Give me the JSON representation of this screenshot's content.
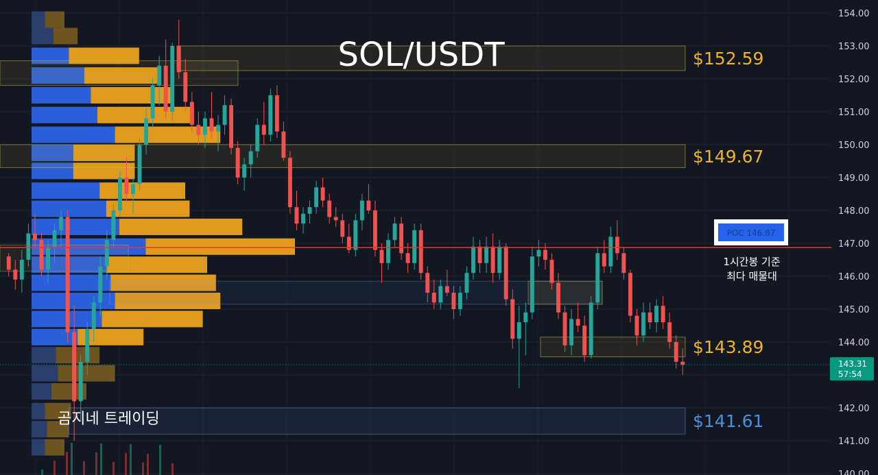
{
  "chart_data": {
    "type": "candlestick",
    "title": "SOL/USDT",
    "watermark": "곰지네 트레이딩",
    "y_ticks": [
      154.0,
      153.0,
      152.0,
      151.0,
      150.0,
      149.0,
      148.0,
      147.0,
      146.0,
      145.0,
      144.0,
      143.0,
      142.0,
      141.0,
      140.0
    ],
    "y_tick_labels": [
      "154.00",
      "153.00",
      "152.00",
      "151.00",
      "150.00",
      "149.00",
      "148.00",
      "147.00",
      "146.00",
      "145.00",
      "144.00",
      "143.00",
      "142.00",
      "141.00",
      "140.00"
    ],
    "ylim": [
      139.9,
      154.45
    ],
    "zones": [
      {
        "label": "$152.59",
        "top": 153.0,
        "bottom": 152.25,
        "color": "#f0b429"
      },
      {
        "label": "$149.67",
        "top": 150.0,
        "bottom": 149.3,
        "color": "#f0b429"
      },
      {
        "label": "$143.89",
        "top": 144.15,
        "bottom": 143.55,
        "color": "#f0b429"
      },
      {
        "label": "$141.61",
        "top": 142.0,
        "bottom": 141.2,
        "color": "#4a90e2"
      }
    ],
    "poc": {
      "label": "POC  146.87",
      "value": 146.87,
      "color": "#ff2d2d"
    },
    "poc_note": [
      "1시간봉 기준",
      "최다 매물대"
    ],
    "last_price": {
      "value": "143.31",
      "timer": "57:54",
      "price": 143.31,
      "color": "#089981"
    },
    "up_color": "#26a69a",
    "down_color": "#ef5350",
    "volume_profile": [
      {
        "price": 153.8,
        "buy": 0.3,
        "sell": 0.45
      },
      {
        "price": 153.3,
        "buy": 0.5,
        "sell": 0.55
      },
      {
        "price": 152.7,
        "buy": 0.85,
        "sell": 1.6
      },
      {
        "price": 152.1,
        "buy": 1.2,
        "sell": 1.7
      },
      {
        "price": 151.5,
        "buy": 1.35,
        "sell": 1.9
      },
      {
        "price": 150.9,
        "buy": 1.5,
        "sell": 2.2
      },
      {
        "price": 150.3,
        "buy": 1.9,
        "sell": 2.4
      },
      {
        "price": 149.75,
        "buy": 0.95,
        "sell": 1.4
      },
      {
        "price": 149.2,
        "buy": 0.95,
        "sell": 1.4
      },
      {
        "price": 148.6,
        "buy": 1.55,
        "sell": 1.95
      },
      {
        "price": 148.05,
        "buy": 1.7,
        "sell": 1.9
      },
      {
        "price": 147.5,
        "buy": 2.0,
        "sell": 2.8
      },
      {
        "price": 146.9,
        "buy": 2.6,
        "sell": 3.4
      },
      {
        "price": 146.35,
        "buy": 1.7,
        "sell": 2.3
      },
      {
        "price": 145.8,
        "buy": 1.8,
        "sell": 2.4
      },
      {
        "price": 145.25,
        "buy": 1.9,
        "sell": 2.4
      },
      {
        "price": 144.7,
        "buy": 1.6,
        "sell": 2.3
      },
      {
        "price": 144.15,
        "buy": 1.05,
        "sell": 1.5
      },
      {
        "price": 143.6,
        "buy": 0.55,
        "sell": 1.0
      },
      {
        "price": 143.05,
        "buy": 0.6,
        "sell": 1.3
      },
      {
        "price": 142.5,
        "buy": 0.45,
        "sell": 0.8
      },
      {
        "price": 141.9,
        "buy": 0.3,
        "sell": 0.6
      },
      {
        "price": 141.35,
        "buy": 0.35,
        "sell": 0.5
      },
      {
        "price": 140.8,
        "buy": 0.3,
        "sell": 0.45
      }
    ],
    "candles": [
      [
        146.6,
        146.7,
        146.0,
        146.2
      ],
      [
        146.2,
        146.5,
        145.6,
        145.9
      ],
      [
        145.9,
        146.8,
        145.5,
        146.5
      ],
      [
        146.5,
        147.6,
        146.3,
        147.3
      ],
      [
        147.3,
        147.9,
        146.9,
        147.1
      ],
      [
        147.1,
        147.3,
        146.0,
        146.2
      ],
      [
        146.2,
        147.1,
        145.8,
        146.9
      ],
      [
        146.9,
        147.6,
        146.4,
        147.4
      ],
      [
        147.4,
        148.0,
        146.9,
        147.8
      ],
      [
        147.8,
        148.0,
        144.0,
        144.3
      ],
      [
        144.3,
        145.1,
        141.0,
        142.2
      ],
      [
        142.2,
        143.6,
        141.6,
        143.4
      ],
      [
        143.4,
        144.6,
        143.0,
        144.4
      ],
      [
        144.4,
        145.4,
        144.0,
        145.2
      ],
      [
        145.2,
        146.6,
        144.8,
        146.3
      ],
      [
        146.3,
        147.4,
        145.9,
        147.1
      ],
      [
        147.1,
        148.2,
        146.9,
        148.0
      ],
      [
        148.0,
        149.2,
        147.8,
        149.0
      ],
      [
        149.0,
        149.6,
        148.3,
        148.5
      ],
      [
        148.5,
        149.0,
        147.9,
        148.8
      ],
      [
        148.8,
        150.2,
        148.6,
        150.0
      ],
      [
        150.0,
        151.1,
        149.7,
        150.8
      ],
      [
        150.8,
        152.0,
        150.5,
        151.8
      ],
      [
        151.8,
        152.7,
        151.2,
        152.4
      ],
      [
        152.4,
        153.2,
        150.8,
        151.0
      ],
      [
        151.0,
        153.1,
        150.7,
        153.0
      ],
      [
        153.0,
        153.8,
        152.0,
        152.2
      ],
      [
        152.2,
        152.6,
        151.0,
        151.3
      ],
      [
        151.3,
        151.6,
        150.4,
        150.6
      ],
      [
        150.6,
        151.0,
        150.0,
        150.3
      ],
      [
        150.3,
        151.0,
        149.9,
        150.8
      ],
      [
        150.8,
        151.6,
        150.2,
        150.4
      ],
      [
        150.4,
        150.9,
        149.8,
        150.6
      ],
      [
        150.6,
        151.5,
        150.3,
        151.2
      ],
      [
        151.2,
        151.4,
        149.7,
        149.9
      ],
      [
        149.9,
        150.1,
        148.8,
        149.0
      ],
      [
        149.0,
        149.6,
        148.6,
        149.4
      ],
      [
        149.4,
        150.0,
        149.0,
        149.8
      ],
      [
        149.8,
        150.8,
        149.6,
        150.6
      ],
      [
        150.6,
        151.3,
        150.0,
        150.3
      ],
      [
        150.3,
        151.7,
        150.1,
        151.5
      ],
      [
        151.5,
        151.8,
        150.2,
        150.4
      ],
      [
        150.4,
        150.7,
        149.5,
        149.6
      ],
      [
        149.6,
        149.8,
        147.9,
        148.1
      ],
      [
        148.1,
        148.6,
        147.4,
        147.6
      ],
      [
        147.6,
        148.1,
        147.3,
        147.9
      ],
      [
        147.9,
        148.3,
        147.6,
        148.1
      ],
      [
        148.1,
        148.9,
        147.9,
        148.7
      ],
      [
        148.7,
        149.0,
        148.1,
        148.3
      ],
      [
        148.3,
        148.5,
        147.6,
        147.8
      ],
      [
        147.8,
        148.1,
        147.5,
        147.7
      ],
      [
        147.7,
        147.9,
        147.0,
        147.2
      ],
      [
        147.2,
        147.6,
        146.7,
        146.8
      ],
      [
        146.8,
        147.9,
        146.6,
        147.7
      ],
      [
        147.7,
        148.5,
        147.4,
        148.3
      ],
      [
        148.3,
        148.8,
        147.9,
        148.0
      ],
      [
        148.0,
        148.3,
        146.6,
        146.8
      ],
      [
        146.8,
        147.0,
        145.8,
        146.4
      ],
      [
        146.4,
        147.3,
        146.2,
        147.1
      ],
      [
        147.1,
        147.8,
        146.9,
        147.6
      ],
      [
        147.6,
        147.8,
        146.5,
        146.7
      ],
      [
        146.7,
        147.0,
        146.1,
        146.4
      ],
      [
        146.4,
        147.6,
        146.2,
        147.4
      ],
      [
        147.4,
        147.6,
        145.9,
        146.1
      ],
      [
        146.1,
        146.3,
        145.2,
        145.5
      ],
      [
        145.5,
        145.9,
        145.0,
        145.2
      ],
      [
        145.2,
        145.9,
        145.0,
        145.7
      ],
      [
        145.7,
        146.2,
        145.4,
        145.5
      ],
      [
        145.5,
        145.7,
        144.7,
        145.0
      ],
      [
        145.0,
        145.7,
        144.8,
        145.5
      ],
      [
        145.5,
        146.3,
        145.3,
        146.1
      ],
      [
        146.1,
        147.2,
        145.9,
        146.9
      ],
      [
        146.9,
        147.1,
        146.1,
        146.4
      ],
      [
        146.4,
        147.2,
        146.1,
        146.9
      ],
      [
        146.9,
        147.3,
        145.8,
        146.1
      ],
      [
        146.1,
        147.1,
        145.9,
        146.9
      ],
      [
        146.9,
        147.0,
        145.1,
        145.3
      ],
      [
        145.3,
        145.6,
        143.8,
        144.1
      ],
      [
        144.1,
        145.1,
        142.6,
        144.6
      ],
      [
        144.6,
        145.2,
        143.6,
        144.9
      ],
      [
        144.9,
        146.9,
        144.7,
        146.6
      ],
      [
        146.6,
        147.1,
        146.3,
        146.8
      ],
      [
        146.8,
        147.0,
        146.2,
        146.5
      ],
      [
        146.5,
        146.7,
        145.6,
        145.8
      ],
      [
        145.8,
        146.1,
        144.7,
        144.9
      ],
      [
        144.9,
        145.1,
        143.7,
        143.9
      ],
      [
        143.9,
        145.0,
        143.6,
        144.7
      ],
      [
        144.7,
        145.2,
        144.3,
        144.5
      ],
      [
        144.5,
        144.8,
        143.4,
        143.6
      ],
      [
        143.6,
        145.4,
        143.5,
        145.2
      ],
      [
        145.2,
        146.9,
        145.0,
        146.7
      ],
      [
        146.7,
        147.1,
        146.1,
        146.3
      ],
      [
        146.3,
        147.5,
        146.1,
        147.2
      ],
      [
        147.2,
        147.7,
        146.5,
        146.7
      ],
      [
        146.7,
        146.9,
        145.9,
        146.1
      ],
      [
        146.1,
        146.2,
        144.6,
        144.8
      ],
      [
        144.8,
        145.0,
        143.9,
        144.2
      ],
      [
        144.2,
        145.2,
        144.0,
        144.9
      ],
      [
        144.9,
        145.2,
        144.4,
        144.6
      ],
      [
        144.6,
        145.3,
        144.3,
        145.1
      ],
      [
        145.1,
        145.4,
        144.4,
        144.6
      ],
      [
        144.6,
        144.9,
        143.8,
        144.0
      ],
      [
        144.0,
        144.2,
        143.2,
        143.4
      ],
      [
        143.4,
        143.8,
        143.0,
        143.31
      ]
    ]
  }
}
